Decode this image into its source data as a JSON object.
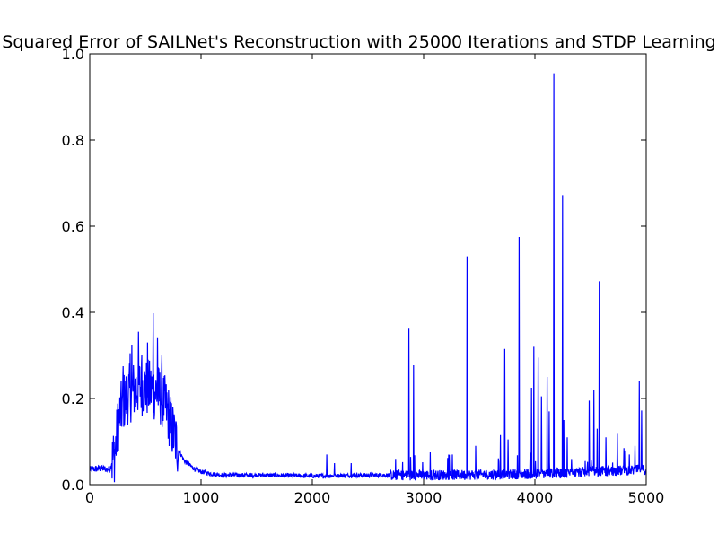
{
  "chart_data": {
    "type": "line",
    "title": "Squared Error of SAILNet's Reconstruction with 25000 Iterations and STDP Learning",
    "xlabel": "",
    "ylabel": "",
    "xlim": [
      0,
      5000
    ],
    "ylim": [
      0.0,
      1.0
    ],
    "xticks": [
      "0",
      "1000",
      "2000",
      "3000",
      "4000",
      "5000"
    ],
    "yticks": [
      "0.0",
      "0.2",
      "0.4",
      "0.6",
      "0.8",
      "1.0"
    ],
    "grid": false,
    "legend": "none",
    "series": [
      {
        "color": "#0000ff",
        "profile": [
          [
            0,
            0.035
          ],
          [
            100,
            0.038
          ],
          [
            180,
            0.035
          ],
          [
            230,
            0.08
          ],
          [
            260,
            0.15
          ],
          [
            300,
            0.19
          ],
          [
            350,
            0.21
          ],
          [
            400,
            0.22
          ],
          [
            450,
            0.23
          ],
          [
            500,
            0.225
          ],
          [
            550,
            0.22
          ],
          [
            600,
            0.215
          ],
          [
            650,
            0.2
          ],
          [
            700,
            0.17
          ],
          [
            750,
            0.12
          ],
          [
            800,
            0.08
          ],
          [
            850,
            0.055
          ],
          [
            900,
            0.045
          ],
          [
            950,
            0.035
          ],
          [
            1000,
            0.03
          ],
          [
            1100,
            0.025
          ],
          [
            1200,
            0.022
          ],
          [
            1600,
            0.022
          ],
          [
            2000,
            0.02
          ],
          [
            2500,
            0.022
          ],
          [
            3000,
            0.022
          ],
          [
            3500,
            0.023
          ],
          [
            4000,
            0.025
          ],
          [
            4500,
            0.03
          ],
          [
            5000,
            0.035
          ]
        ],
        "spikes": [
          [
            300,
            0.275
          ],
          [
            365,
            0.305
          ],
          [
            380,
            0.325
          ],
          [
            440,
            0.355
          ],
          [
            470,
            0.3
          ],
          [
            520,
            0.33
          ],
          [
            570,
            0.398
          ],
          [
            610,
            0.34
          ],
          [
            650,
            0.3
          ],
          [
            2130,
            0.07
          ],
          [
            2200,
            0.05
          ],
          [
            2350,
            0.05
          ],
          [
            2750,
            0.06
          ],
          [
            2870,
            0.362
          ],
          [
            2910,
            0.277
          ],
          [
            3060,
            0.075
          ],
          [
            3260,
            0.07
          ],
          [
            3390,
            0.53
          ],
          [
            3470,
            0.09
          ],
          [
            3690,
            0.115
          ],
          [
            3730,
            0.315
          ],
          [
            3760,
            0.105
          ],
          [
            3860,
            0.575
          ],
          [
            3970,
            0.225
          ],
          [
            3990,
            0.32
          ],
          [
            4030,
            0.295
          ],
          [
            4060,
            0.205
          ],
          [
            4110,
            0.25
          ],
          [
            4130,
            0.17
          ],
          [
            4170,
            0.955
          ],
          [
            4250,
            0.672
          ],
          [
            4260,
            0.15
          ],
          [
            4290,
            0.11
          ],
          [
            4490,
            0.195
          ],
          [
            4530,
            0.22
          ],
          [
            4560,
            0.13
          ],
          [
            4580,
            0.472
          ],
          [
            4640,
            0.11
          ],
          [
            4740,
            0.12
          ],
          [
            4800,
            0.085
          ],
          [
            4900,
            0.09
          ],
          [
            4940,
            0.24
          ],
          [
            4960,
            0.172
          ]
        ]
      }
    ]
  }
}
